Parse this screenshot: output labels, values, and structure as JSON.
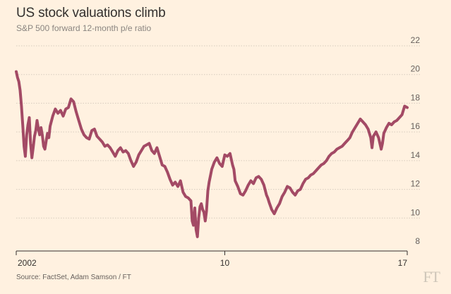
{
  "header": {
    "title": "US stock valuations climb",
    "subtitle": "S&P 500 forward 12-month p/e ratio"
  },
  "footer": {
    "source": "Source: FactSet, Adam Samson / FT",
    "logo_text": "FT"
  },
  "colors": {
    "background": "#fff1e0",
    "line": "#a34a65",
    "grid": "#d6cbbd",
    "axis": "#33302e"
  },
  "chart_data": {
    "type": "line",
    "title": "US stock valuations climb",
    "subtitle": "S&P 500 forward 12-month p/e ratio",
    "xlabel": "",
    "ylabel": "",
    "xlim": [
      2002.0,
      2017.0
    ],
    "ylim": [
      8,
      22
    ],
    "grid": true,
    "y_axis_side": "right",
    "yticks": [
      8,
      10,
      12,
      14,
      16,
      18,
      20,
      22
    ],
    "xticks": [
      {
        "value": 2002.0,
        "label": "2002"
      },
      {
        "value": 2010.0,
        "label": "10"
      },
      {
        "value": 2017.0,
        "label": "17"
      }
    ],
    "series": [
      {
        "name": "S&P 500 forward 12-month p/e ratio",
        "x": [
          2002.0,
          2002.05,
          2002.1,
          2002.15,
          2002.2,
          2002.25,
          2002.3,
          2002.35,
          2002.4,
          2002.45,
          2002.5,
          2002.55,
          2002.6,
          2002.65,
          2002.7,
          2002.75,
          2002.8,
          2002.85,
          2002.9,
          2002.95,
          2003.0,
          2003.05,
          2003.1,
          2003.15,
          2003.2,
          2003.25,
          2003.3,
          2003.4,
          2003.5,
          2003.6,
          2003.7,
          2003.8,
          2003.9,
          2004.0,
          2004.1,
          2004.2,
          2004.3,
          2004.4,
          2004.5,
          2004.6,
          2004.7,
          2004.8,
          2004.9,
          2005.0,
          2005.1,
          2005.2,
          2005.3,
          2005.4,
          2005.5,
          2005.6,
          2005.7,
          2005.8,
          2005.9,
          2006.0,
          2006.1,
          2006.2,
          2006.3,
          2006.4,
          2006.5,
          2006.6,
          2006.7,
          2006.8,
          2006.9,
          2007.0,
          2007.1,
          2007.2,
          2007.3,
          2007.4,
          2007.5,
          2007.6,
          2007.7,
          2007.8,
          2007.9,
          2008.0,
          2008.1,
          2008.2,
          2008.3,
          2008.4,
          2008.5,
          2008.6,
          2008.7,
          2008.75,
          2008.8,
          2008.85,
          2008.9,
          2008.95,
          2009.0,
          2009.05,
          2009.1,
          2009.15,
          2009.2,
          2009.25,
          2009.3,
          2009.35,
          2009.4,
          2009.5,
          2009.6,
          2009.7,
          2009.8,
          2009.9,
          2010.0,
          2010.1,
          2010.2,
          2010.3,
          2010.35,
          2010.4,
          2010.5,
          2010.6,
          2010.7,
          2010.8,
          2010.9,
          2011.0,
          2011.1,
          2011.2,
          2011.3,
          2011.4,
          2011.5,
          2011.6,
          2011.65,
          2011.7,
          2011.8,
          2011.9,
          2012.0,
          2012.1,
          2012.2,
          2012.3,
          2012.4,
          2012.5,
          2012.6,
          2012.7,
          2012.8,
          2012.9,
          2013.0,
          2013.1,
          2013.2,
          2013.3,
          2013.4,
          2013.5,
          2013.6,
          2013.7,
          2013.8,
          2013.9,
          2014.0,
          2014.1,
          2014.2,
          2014.3,
          2014.4,
          2014.5,
          2014.6,
          2014.7,
          2014.8,
          2014.9,
          2015.0,
          2015.1,
          2015.2,
          2015.3,
          2015.4,
          2015.5,
          2015.6,
          2015.65,
          2015.7,
          2015.8,
          2015.9,
          2016.0,
          2016.05,
          2016.1,
          2016.2,
          2016.3,
          2016.4,
          2016.5,
          2016.6,
          2016.7,
          2016.8,
          2016.9,
          2017.0
        ],
        "values": [
          20.2,
          19.8,
          19.5,
          18.9,
          17.8,
          16.5,
          15.0,
          14.3,
          15.8,
          16.5,
          17.0,
          15.2,
          14.2,
          14.9,
          15.7,
          16.1,
          16.8,
          16.2,
          15.8,
          16.3,
          15.8,
          15.0,
          14.8,
          15.4,
          15.9,
          15.6,
          16.4,
          17.1,
          17.6,
          17.3,
          17.5,
          17.1,
          17.6,
          17.7,
          18.3,
          18.1,
          17.4,
          16.8,
          16.2,
          15.8,
          15.6,
          15.5,
          16.1,
          16.2,
          15.7,
          15.5,
          15.3,
          15.0,
          15.1,
          14.9,
          14.6,
          14.3,
          14.7,
          14.9,
          14.6,
          14.7,
          14.5,
          14.0,
          13.6,
          13.9,
          14.4,
          14.7,
          15.0,
          15.1,
          15.2,
          14.7,
          14.5,
          14.9,
          14.3,
          13.7,
          13.6,
          13.2,
          12.7,
          12.3,
          12.5,
          12.2,
          12.6,
          11.8,
          11.5,
          11.4,
          11.2,
          9.8,
          9.5,
          10.7,
          9.2,
          8.7,
          10.0,
          10.8,
          11.0,
          10.6,
          10.4,
          9.8,
          10.5,
          11.9,
          12.5,
          13.4,
          13.9,
          14.2,
          13.8,
          13.6,
          14.4,
          14.3,
          14.5,
          13.7,
          13.4,
          12.6,
          12.2,
          11.7,
          11.6,
          11.9,
          12.3,
          12.6,
          12.4,
          12.8,
          12.9,
          12.7,
          12.3,
          11.6,
          11.4,
          11.1,
          10.6,
          10.3,
          10.7,
          11.0,
          11.5,
          11.8,
          12.2,
          12.1,
          11.8,
          11.6,
          11.9,
          12.0,
          12.4,
          12.7,
          12.8,
          13.0,
          13.1,
          13.3,
          13.5,
          13.7,
          13.8,
          14.0,
          14.3,
          14.5,
          14.6,
          14.8,
          14.9,
          15.0,
          15.2,
          15.4,
          15.6,
          16.0,
          16.3,
          16.6,
          16.9,
          16.7,
          16.5,
          16.2,
          15.6,
          14.9,
          15.7,
          16.0,
          15.6,
          14.8,
          15.2,
          15.9,
          16.3,
          16.6,
          16.5,
          16.7,
          16.8,
          17.0,
          17.2,
          17.8,
          17.7
        ]
      }
    ]
  }
}
